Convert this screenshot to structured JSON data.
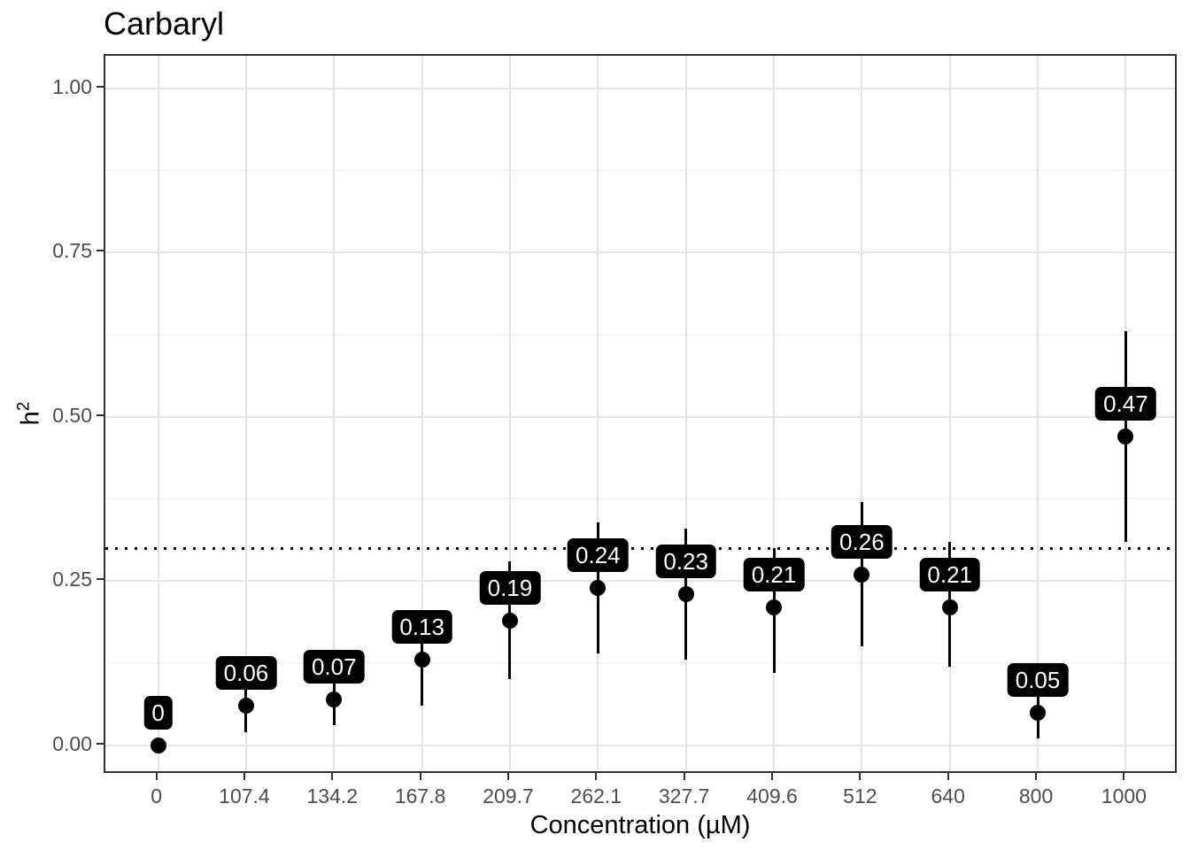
{
  "title": "Carbaryl",
  "chart_data": {
    "type": "scatter",
    "title": "Carbaryl",
    "xlabel": "Concentration (µM)",
    "ylabel": "h2",
    "ylabel_base": "h",
    "ylabel_sup": "2",
    "grid": true,
    "legend": "none",
    "categories": [
      "0",
      "107.4",
      "134.2",
      "167.8",
      "209.7",
      "262.1",
      "327.7",
      "409.6",
      "512",
      "640",
      "800",
      "1000"
    ],
    "points": [
      {
        "category": "0",
        "value": 0.0,
        "label": "0",
        "ci_low": 0.0,
        "ci_high": 0.0
      },
      {
        "category": "107.4",
        "value": 0.06,
        "label": "0.06",
        "ci_low": 0.02,
        "ci_high": 0.1
      },
      {
        "category": "134.2",
        "value": 0.07,
        "label": "0.07",
        "ci_low": 0.03,
        "ci_high": 0.12
      },
      {
        "category": "167.8",
        "value": 0.13,
        "label": "0.13",
        "ci_low": 0.06,
        "ci_high": 0.2
      },
      {
        "category": "209.7",
        "value": 0.19,
        "label": "0.19",
        "ci_low": 0.1,
        "ci_high": 0.28
      },
      {
        "category": "262.1",
        "value": 0.24,
        "label": "0.24",
        "ci_low": 0.14,
        "ci_high": 0.34
      },
      {
        "category": "327.7",
        "value": 0.23,
        "label": "0.23",
        "ci_low": 0.13,
        "ci_high": 0.33
      },
      {
        "category": "409.6",
        "value": 0.21,
        "label": "0.21",
        "ci_low": 0.11,
        "ci_high": 0.3
      },
      {
        "category": "512",
        "value": 0.26,
        "label": "0.26",
        "ci_low": 0.15,
        "ci_high": 0.37
      },
      {
        "category": "640",
        "value": 0.21,
        "label": "0.21",
        "ci_low": 0.12,
        "ci_high": 0.31
      },
      {
        "category": "800",
        "value": 0.05,
        "label": "0.05",
        "ci_low": 0.01,
        "ci_high": 0.09
      },
      {
        "category": "1000",
        "value": 0.47,
        "label": "0.47",
        "ci_low": 0.31,
        "ci_high": 0.63
      }
    ],
    "reference_line": {
      "y": 0.3,
      "style": "dotted",
      "color": "#000000"
    },
    "y_axis": {
      "ticks": [
        0.0,
        0.25,
        0.5,
        0.75,
        1.0
      ],
      "tick_labels": [
        "0.00",
        "0.25",
        "0.50",
        "0.75",
        "1.00"
      ],
      "minor_ticks": [
        0.125,
        0.375,
        0.625,
        0.875
      ],
      "range": [
        -0.045,
        1.05
      ]
    },
    "x_axis": {
      "padding_units": 0.6
    },
    "colors": {
      "point": "#000000",
      "errorbar": "#000000",
      "label_bg": "#000000",
      "label_text": "#ffffff",
      "grid_major": "#e4e4e4",
      "grid_minor": "#f0f0f0",
      "panel_border": "#333333",
      "tick_label": "#4d4d4d"
    }
  }
}
